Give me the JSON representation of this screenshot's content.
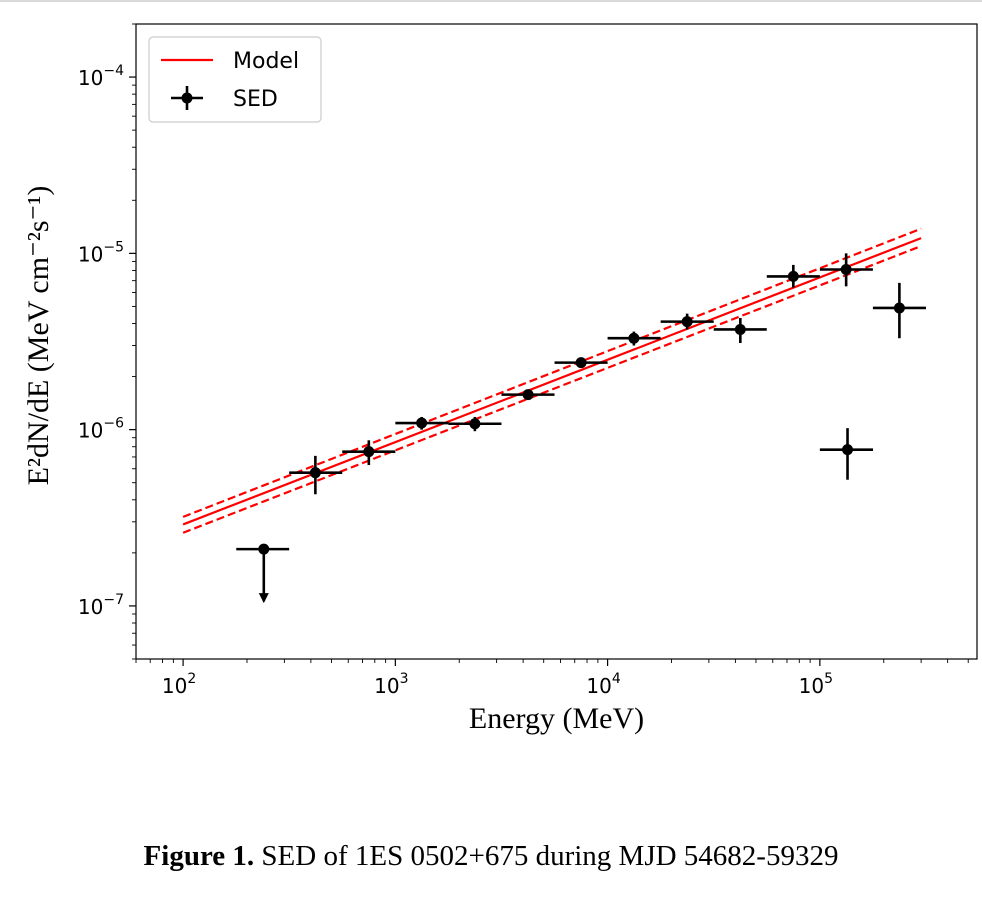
{
  "caption": {
    "label": "Figure 1.",
    "text": "SED of 1ES 0502+675 during MJD 54682-59329"
  },
  "chart_data": {
    "type": "scatter",
    "xlabel": "Energy (MeV)",
    "ylabel": "E²dN/dE (MeV cm⁻²s⁻¹)",
    "xscale": "log",
    "yscale": "log",
    "xlim": [
      60,
      550000
    ],
    "ylim": [
      5e-08,
      0.0002
    ],
    "x_ticks": [
      {
        "value": 100,
        "base": "10",
        "exp": "2"
      },
      {
        "value": 1000,
        "base": "10",
        "exp": "3"
      },
      {
        "value": 10000,
        "base": "10",
        "exp": "4"
      },
      {
        "value": 100000,
        "base": "10",
        "exp": "5"
      }
    ],
    "y_ticks": [
      {
        "value": 1e-07,
        "base": "10",
        "exp": "−7"
      },
      {
        "value": 1e-06,
        "base": "10",
        "exp": "−6"
      },
      {
        "value": 1e-05,
        "base": "10",
        "exp": "−5"
      },
      {
        "value": 0.0001,
        "base": "10",
        "exp": "−4"
      }
    ],
    "grid": false,
    "legend_position": "top-left",
    "colors": {
      "model": "#ff0000",
      "sed": "#000000"
    },
    "series": [
      {
        "name": "Model",
        "style": "line",
        "x": [
          100,
          300000
        ],
        "y": [
          2.9e-07,
          1.22e-05
        ],
        "band_upper": [
          3.2e-07,
          1.38e-05
        ],
        "band_lower": [
          2.6e-07,
          1.1e-05
        ]
      },
      {
        "name": "SED",
        "style": "errorbar",
        "points": [
          {
            "x": 135000,
            "x_lo": 100000,
            "x_hi": 178000,
            "y": 7.7e-07,
            "y_lo": 5.2e-07,
            "y_hi": 1.02e-06
          },
          {
            "x": 240,
            "x_lo": 178,
            "x_hi": 316,
            "y": 2.1e-07,
            "upper_limit": true
          },
          {
            "x": 420,
            "x_lo": 316,
            "x_hi": 562,
            "y": 5.7e-07,
            "y_lo": 4.3e-07,
            "y_hi": 7.1e-07
          },
          {
            "x": 750,
            "x_lo": 562,
            "x_hi": 1000,
            "y": 7.5e-07,
            "y_lo": 6.3e-07,
            "y_hi": 8.7e-07
          },
          {
            "x": 1330,
            "x_lo": 1000,
            "x_hi": 1778,
            "y": 1.09e-06,
            "y_lo": 1e-06,
            "y_hi": 1.18e-06
          },
          {
            "x": 2370,
            "x_lo": 1778,
            "x_hi": 3162,
            "y": 1.08e-06,
            "y_lo": 9.8e-07,
            "y_hi": 1.18e-06
          },
          {
            "x": 4220,
            "x_lo": 3162,
            "x_hi": 5623,
            "y": 1.58e-06,
            "y_lo": 1.48e-06,
            "y_hi": 1.68e-06
          },
          {
            "x": 7500,
            "x_lo": 5623,
            "x_hi": 10000,
            "y": 2.4e-06,
            "y_lo": 2.25e-06,
            "y_hi": 2.55e-06
          },
          {
            "x": 13300,
            "x_lo": 10000,
            "x_hi": 17780,
            "y": 3.3e-06,
            "y_lo": 3e-06,
            "y_hi": 3.6e-06
          },
          {
            "x": 23700,
            "x_lo": 17780,
            "x_hi": 31620,
            "y": 4.1e-06,
            "y_lo": 3.7e-06,
            "y_hi": 4.55e-06
          },
          {
            "x": 42200,
            "x_lo": 31620,
            "x_hi": 56230,
            "y": 3.7e-06,
            "y_lo": 3.1e-06,
            "y_hi": 4.3e-06
          },
          {
            "x": 75000,
            "x_lo": 56230,
            "x_hi": 100000,
            "y": 7.4e-06,
            "y_lo": 6.4e-06,
            "y_hi": 8.6e-06
          },
          {
            "x": 133000,
            "x_lo": 100000,
            "x_hi": 177800,
            "y": 8.1e-06,
            "y_lo": 6.5e-06,
            "y_hi": 1e-05
          },
          {
            "x": 237000,
            "x_lo": 177800,
            "x_hi": 316200,
            "y": 4.9e-06,
            "y_lo": 3.3e-06,
            "y_hi": 6.8e-06
          }
        ]
      }
    ]
  }
}
